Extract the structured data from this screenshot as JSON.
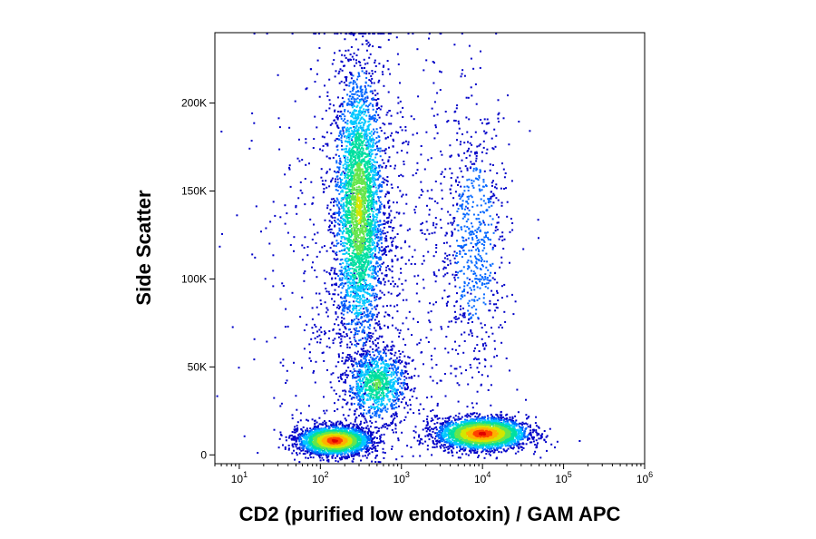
{
  "chart_data": {
    "type": "scatter",
    "xlabel": "CD2 (purified low endotoxin) / GAM APC",
    "ylabel": "Side Scatter",
    "x_scale": "log",
    "xlim": [
      5,
      1000000
    ],
    "ylim": [
      -5000,
      240000
    ],
    "grid": false,
    "x_ticks": [
      {
        "value": 10,
        "base": "10",
        "exp": "1"
      },
      {
        "value": 100,
        "base": "10",
        "exp": "2"
      },
      {
        "value": 1000,
        "base": "10",
        "exp": "3"
      },
      {
        "value": 10000,
        "base": "10",
        "exp": "4"
      },
      {
        "value": 100000,
        "base": "10",
        "exp": "5"
      },
      {
        "value": 1000000,
        "base": "10",
        "exp": "6"
      }
    ],
    "y_ticks": [
      {
        "value": 0,
        "label": "0"
      },
      {
        "value": 50000,
        "label": "50K"
      },
      {
        "value": 100000,
        "label": "100K"
      },
      {
        "value": 150000,
        "label": "150K"
      },
      {
        "value": 200000,
        "label": "200K"
      }
    ],
    "density_palette": [
      "#0000c8",
      "#0066ff",
      "#00c8ff",
      "#00e0a0",
      "#66e64d",
      "#d4e600",
      "#ffb000",
      "#ff4000",
      "#e00000"
    ],
    "populations": [
      {
        "x_center": 300,
        "x_spread_decades": 0.15,
        "y_center": 140000,
        "y_spread": 40000,
        "points": 3200,
        "peak_density": 5
      },
      {
        "x_center": 150,
        "x_spread_decades": 0.22,
        "y_center": 8000,
        "y_spread": 4000,
        "points": 2600,
        "peak_density": 8
      },
      {
        "x_center": 10000,
        "x_spread_decades": 0.28,
        "y_center": 12000,
        "y_spread": 4500,
        "points": 2800,
        "peak_density": 8
      },
      {
        "x_center": 500,
        "x_spread_decades": 0.18,
        "y_center": 40000,
        "y_spread": 10000,
        "points": 900,
        "peak_density": 4
      },
      {
        "x_center": 8000,
        "x_spread_decades": 0.22,
        "y_center": 120000,
        "y_spread": 40000,
        "points": 700,
        "peak_density": 1
      },
      {
        "x_center": 400,
        "x_spread_decades": 0.6,
        "y_center": 100000,
        "y_spread": 70000,
        "points": 1200,
        "peak_density": 0
      }
    ]
  }
}
